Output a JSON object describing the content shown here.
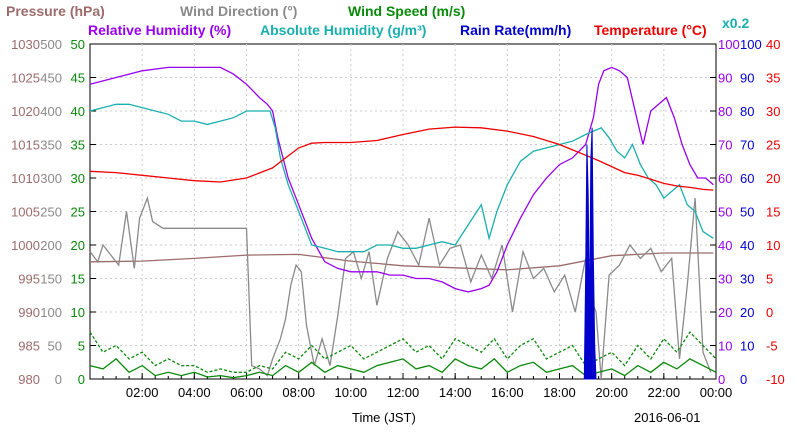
{
  "chart_data": {
    "type": "line",
    "date": "2016-06-01",
    "xlabel": "Time (JST)",
    "x_ticks": [
      "02:00",
      "04:00",
      "06:00",
      "08:00",
      "10:00",
      "12:00",
      "14:00",
      "16:00",
      "18:00",
      "20:00",
      "22:00",
      "00:00"
    ],
    "title_row1": [
      {
        "text": "Pressure (hPa)",
        "color": "#9c6b6b"
      },
      {
        "text": "Wind Direction (°)",
        "color": "#8a8a8a"
      },
      {
        "text": "Wind Speed (m/s)",
        "color": "#0a8a0a"
      }
    ],
    "title_row2": [
      {
        "text": "Relative Humidity (%)",
        "color": "#9900ee"
      },
      {
        "text": "Absolute Humidity (g/m³)",
        "color": "#1aafaf"
      },
      {
        "text": "Rain Rate(mm/h)",
        "color": "#0000cc"
      },
      {
        "text": "Temperature (°C)",
        "color": "#ee0000"
      },
      {
        "text": "x0.2",
        "color": "#1aafaf"
      }
    ],
    "axes": {
      "pressure": {
        "ticks": [
          "980",
          "985",
          "990",
          "995",
          "1000",
          "1005",
          "1010",
          "1015",
          "1020",
          "1025",
          "1030"
        ],
        "color": "#9c6b6b",
        "range": [
          980,
          1030
        ]
      },
      "wind_direction": {
        "ticks": [
          "0",
          "50",
          "100",
          "150",
          "200",
          "250",
          "300",
          "350",
          "400",
          "450",
          "500"
        ],
        "color": "#8a8a8a",
        "range": [
          0,
          500
        ]
      },
      "wind_speed": {
        "ticks": [
          "0",
          "5",
          "10",
          "15",
          "20",
          "25",
          "30",
          "35",
          "40",
          "45",
          "50"
        ],
        "color": "#0a8a0a",
        "range": [
          0,
          50
        ]
      },
      "humidity": {
        "ticks": [
          "0",
          "10",
          "20",
          "30",
          "40",
          "50",
          "60",
          "70",
          "80",
          "90",
          "100"
        ],
        "color": "#9900ee",
        "range": [
          0,
          100
        ]
      },
      "rain": {
        "ticks": [
          "0",
          "10",
          "20",
          "30",
          "40",
          "50",
          "60",
          "70",
          "80",
          "90",
          "100"
        ],
        "color": "#0000cc",
        "range": [
          0,
          100
        ]
      },
      "temperature": {
        "ticks": [
          "-10",
          "-5",
          "0",
          "5",
          "10",
          "15",
          "20",
          "25",
          "30",
          "35",
          "40"
        ],
        "color": "#ee0000",
        "range": [
          -10,
          40
        ]
      }
    },
    "x_range": [
      0,
      24
    ],
    "series": [
      {
        "name": "Pressure",
        "axis": "pressure",
        "color": "#9c6b6b",
        "x": [
          0,
          2,
          4,
          6,
          8,
          10,
          12,
          14,
          16,
          18,
          20,
          22,
          23.9
        ],
        "y": [
          997.5,
          997.6,
          998.0,
          998.5,
          998.6,
          997.6,
          996.9,
          996.6,
          996.3,
          996.9,
          998.4,
          998.8,
          998.8
        ]
      },
      {
        "name": "Wind Direction",
        "axis": "wind_direction",
        "color": "#8a8a8a",
        "x": [
          0,
          0.3,
          0.5,
          0.8,
          1.1,
          1.4,
          1.7,
          1.9,
          2.2,
          2.4,
          2.8,
          4.0,
          5.0,
          5.8,
          6.0,
          6.2,
          6.5,
          6.8,
          7.0,
          7.3,
          7.5,
          7.7,
          7.9,
          8.1,
          8.3,
          8.6,
          8.9,
          9.2,
          9.5,
          9.8,
          10.1,
          10.4,
          10.7,
          11.0,
          11.4,
          11.8,
          12.2,
          12.6,
          13.0,
          13.4,
          13.8,
          14.2,
          14.6,
          15.0,
          15.4,
          15.8,
          16.2,
          16.6,
          17.0,
          17.4,
          17.8,
          18.2,
          18.6,
          19.0,
          19.2,
          19.4,
          19.6,
          19.9,
          20.3,
          20.7,
          21.1,
          21.5,
          21.9,
          22.3,
          22.6,
          22.9,
          23.2,
          23.5,
          23.8
        ],
        "y": [
          190,
          175,
          200,
          185,
          170,
          250,
          165,
          240,
          270,
          235,
          225,
          225,
          225,
          225,
          225,
          20,
          15,
          5,
          30,
          60,
          90,
          140,
          170,
          160,
          80,
          20,
          60,
          20,
          95,
          180,
          190,
          150,
          190,
          110,
          180,
          220,
          200,
          170,
          240,
          170,
          195,
          200,
          145,
          185,
          150,
          200,
          100,
          190,
          150,
          165,
          130,
          155,
          100,
          180,
          120,
          100,
          0,
          155,
          170,
          200,
          180,
          195,
          160,
          180,
          30,
          140,
          270,
          40,
          10
        ]
      },
      {
        "name": "Wind Speed",
        "axis": "wind_speed",
        "color": "#0a8a0a",
        "x": [
          0,
          0.5,
          1,
          1.5,
          2,
          2.5,
          3,
          3.5,
          4,
          4.5,
          5,
          5.5,
          6,
          6.5,
          7,
          7.5,
          8,
          8.5,
          9,
          9.5,
          10,
          10.5,
          11,
          11.5,
          12,
          12.5,
          13,
          13.5,
          14,
          14.5,
          15,
          15.5,
          16,
          16.5,
          17,
          17.5,
          18,
          18.5,
          19,
          19.5,
          20,
          20.5,
          21,
          21.5,
          22,
          22.5,
          23,
          23.5,
          24
        ],
        "y": [
          2,
          1.5,
          3,
          1,
          2,
          0.5,
          1,
          0.5,
          1,
          0.3,
          0.5,
          0.2,
          0.5,
          1,
          0.5,
          2,
          1,
          2.5,
          1,
          2,
          1.5,
          1,
          2,
          2.5,
          3,
          1.5,
          2,
          1,
          3,
          2,
          1.5,
          3,
          1,
          2,
          2.5,
          1,
          1.5,
          2,
          0.5,
          1,
          1.5,
          0.5,
          2,
          1,
          2.5,
          1.5,
          3,
          2,
          1
        ]
      },
      {
        "name": "Wind Gust",
        "axis": "wind_speed",
        "color": "#0a8a0a",
        "dash": true,
        "x": [
          0,
          0.5,
          1,
          1.5,
          2,
          2.5,
          3,
          3.5,
          4,
          4.5,
          5,
          5.5,
          6,
          6.5,
          7,
          7.5,
          8,
          8.5,
          9,
          9.5,
          10,
          10.5,
          11,
          11.5,
          12,
          12.5,
          13,
          13.5,
          14,
          14.5,
          15,
          15.5,
          16,
          16.5,
          17,
          17.5,
          18,
          18.5,
          19,
          19.5,
          20,
          20.5,
          21,
          21.5,
          22,
          22.5,
          23,
          23.5,
          24
        ],
        "y": [
          7,
          4,
          5,
          3,
          4,
          2,
          3,
          2,
          2,
          1,
          1.5,
          1,
          1,
          2,
          1.5,
          4,
          3,
          5,
          3,
          4,
          5,
          3,
          4,
          5,
          6,
          4,
          5,
          3,
          6,
          5,
          4,
          6,
          3,
          5,
          6,
          3,
          4,
          5,
          2,
          3,
          4,
          2,
          5,
          3,
          6,
          4,
          7,
          5,
          3
        ]
      },
      {
        "name": "Relative Humidity",
        "axis": "humidity",
        "color": "#9900ee",
        "x": [
          0,
          1.0,
          2.0,
          3.0,
          4.0,
          5.0,
          5.5,
          6.0,
          6.5,
          6.8,
          7.0,
          7.2,
          7.6,
          8.0,
          8.5,
          9.0,
          9.5,
          10.0,
          10.5,
          11.0,
          11.5,
          12.0,
          12.5,
          13.0,
          13.5,
          14.0,
          14.5,
          15.0,
          15.3,
          15.6,
          16.0,
          16.5,
          17.0,
          17.5,
          18.0,
          18.5,
          19.0,
          19.3,
          19.5,
          19.7,
          20.0,
          20.3,
          20.6,
          20.9,
          21.2,
          21.5,
          21.8,
          22.1,
          22.4,
          22.7,
          23.0,
          23.3,
          23.6,
          23.9
        ],
        "y": [
          88,
          90,
          92,
          93,
          93,
          93,
          91,
          88,
          84,
          82,
          80,
          72,
          60,
          52,
          42,
          35,
          33,
          32,
          32,
          32,
          31,
          31,
          30,
          30,
          29,
          27,
          26,
          27,
          28,
          32,
          40,
          48,
          55,
          60,
          64,
          66,
          70,
          78,
          88,
          92,
          93,
          92,
          90,
          80,
          70,
          80,
          82,
          84,
          78,
          70,
          64,
          60,
          60,
          58
        ]
      },
      {
        "name": "Absolute Humidity",
        "axis": "humidity",
        "color": "#1aafaf",
        "x": [
          0,
          0.5,
          1.0,
          1.5,
          2.0,
          2.5,
          3.0,
          3.5,
          4.0,
          4.5,
          5.0,
          5.5,
          6.0,
          6.5,
          6.9,
          7.1,
          7.3,
          7.6,
          8.0,
          8.5,
          9.0,
          9.5,
          10.0,
          10.5,
          11.0,
          11.5,
          12.0,
          12.5,
          13.0,
          13.5,
          14.0,
          14.5,
          15.0,
          15.3,
          15.6,
          16.0,
          16.5,
          17.0,
          17.5,
          18.0,
          18.5,
          19.0,
          19.3,
          19.6,
          19.9,
          20.2,
          20.5,
          20.8,
          21.1,
          21.4,
          21.7,
          22.0,
          22.3,
          22.6,
          22.9,
          23.2,
          23.5,
          23.9
        ],
        "y": [
          80,
          81,
          82,
          82,
          81,
          80,
          79,
          77,
          77,
          76,
          77,
          78,
          80,
          80,
          80,
          75,
          66,
          58,
          50,
          40,
          39,
          38,
          38,
          38,
          40,
          40,
          39,
          39,
          40,
          41,
          40,
          46,
          52,
          42,
          50,
          58,
          65,
          68,
          69,
          70,
          71,
          73,
          74,
          75,
          72,
          68,
          66,
          70,
          64,
          60,
          58,
          54,
          56,
          58,
          52,
          50,
          44,
          42
        ]
      },
      {
        "name": "Temperature",
        "axis": "temperature",
        "color": "#ee0000",
        "x": [
          0,
          1,
          2,
          3,
          4,
          5,
          6,
          7,
          7.5,
          8,
          8.5,
          9,
          10,
          11,
          12,
          13,
          14,
          15,
          16,
          17,
          18,
          18.5,
          19,
          19.5,
          20,
          20.5,
          21,
          21.5,
          22,
          22.5,
          23,
          23.5,
          23.9
        ],
        "y": [
          21,
          20.8,
          20.4,
          20.0,
          19.6,
          19.4,
          20.0,
          21.5,
          23,
          24.5,
          25.2,
          25.3,
          25.3,
          25.6,
          26.5,
          27.3,
          27.6,
          27.5,
          27.0,
          26.2,
          25.0,
          24.2,
          23.4,
          22.6,
          21.7,
          20.8,
          20.4,
          19.8,
          19.2,
          18.8,
          18.6,
          18.3,
          18.2
        ]
      },
      {
        "name": "Rain Rate",
        "axis": "rain",
        "color": "#0000cc",
        "fill": true,
        "x": [
          18.95,
          19.0,
          19.05,
          19.1,
          19.15,
          19.2,
          19.25,
          19.3,
          19.35,
          19.4
        ],
        "y": [
          0,
          30,
          70,
          55,
          15,
          65,
          75,
          35,
          10,
          0
        ]
      }
    ]
  }
}
